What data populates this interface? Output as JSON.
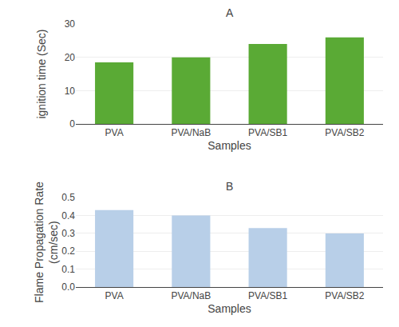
{
  "chart_data": [
    {
      "type": "bar",
      "title": "A",
      "categories": [
        "PVA",
        "PVA/NaB",
        "PVA/SB1",
        "PVA/SB2"
      ],
      "values": [
        18.5,
        20.0,
        24.0,
        26.0
      ],
      "color": "#5aaa35",
      "xlabel": "Samples",
      "ylabel": "ignition time (Sec)",
      "ylim": [
        0,
        30
      ],
      "yticks": [
        0,
        10,
        20,
        30
      ],
      "grid": true
    },
    {
      "type": "bar",
      "title": "B",
      "categories": [
        "PVA",
        "PVA/NaB",
        "PVA/SB1",
        "PVA/SB2"
      ],
      "values": [
        0.43,
        0.4,
        0.33,
        0.3
      ],
      "color": "#b8cfe8",
      "xlabel": "Samples",
      "ylabel": "Flame Propagation Rate\n(cm/sec)",
      "ylim": [
        0,
        0.5
      ],
      "yticks": [
        {
          "value": 0,
          "label": "0.0"
        },
        0.1,
        0.2,
        0.3,
        0.4,
        0.5
      ],
      "grid": true
    }
  ]
}
